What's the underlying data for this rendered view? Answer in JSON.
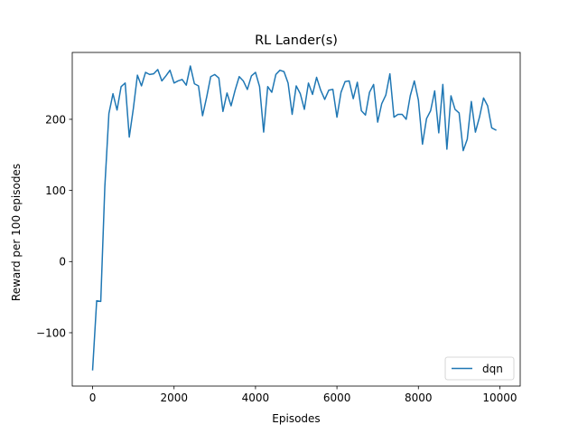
{
  "chart_data": {
    "type": "line",
    "title": "RL Lander(s)",
    "xlabel": "Episodes",
    "ylabel": "Reward per 100 episodes",
    "xlim": [
      -500,
      10500
    ],
    "ylim": [
      -175,
      294
    ],
    "xticks": [
      0,
      2000,
      4000,
      6000,
      8000,
      10000
    ],
    "xtick_labels": [
      "0",
      "2000",
      "4000",
      "6000",
      "8000",
      "10000"
    ],
    "yticks": [
      -100,
      0,
      100,
      200
    ],
    "ytick_labels": [
      "−100",
      "0",
      "100",
      "200"
    ],
    "grid": false,
    "legend_position": "lower-right",
    "series": [
      {
        "name": "dqn",
        "color": "#1f77b4",
        "x": [
          0,
          100,
          200,
          300,
          400,
          500,
          600,
          700,
          800,
          900,
          1000,
          1100,
          1200,
          1300,
          1400,
          1500,
          1600,
          1700,
          1800,
          1900,
          2000,
          2100,
          2200,
          2300,
          2400,
          2500,
          2600,
          2700,
          2800,
          2900,
          3000,
          3100,
          3200,
          3300,
          3400,
          3500,
          3600,
          3700,
          3800,
          3900,
          4000,
          4100,
          4200,
          4300,
          4400,
          4500,
          4600,
          4700,
          4800,
          4900,
          5000,
          5100,
          5200,
          5300,
          5400,
          5500,
          5600,
          5700,
          5800,
          5900,
          6000,
          6100,
          6200,
          6300,
          6400,
          6500,
          6600,
          6700,
          6800,
          6900,
          7000,
          7100,
          7200,
          7300,
          7400,
          7500,
          7600,
          7700,
          7800,
          7900,
          8000,
          8100,
          8200,
          8300,
          8400,
          8500,
          8600,
          8700,
          8800,
          8900,
          9000,
          9100,
          9200,
          9300,
          9400,
          9500,
          9600,
          9700,
          9800,
          9900
        ],
        "y": [
          -152,
          -55,
          -56,
          105,
          208,
          236,
          213,
          246,
          251,
          175,
          215,
          262,
          247,
          266,
          263,
          264,
          270,
          254,
          261,
          269,
          251,
          254,
          256,
          248,
          275,
          250,
          247,
          205,
          231,
          260,
          263,
          258,
          211,
          237,
          219,
          241,
          260,
          254,
          242,
          261,
          266,
          246,
          182,
          246,
          238,
          263,
          269,
          267,
          251,
          207,
          247,
          236,
          214,
          251,
          235,
          259,
          241,
          228,
          241,
          242,
          203,
          238,
          253,
          254,
          229,
          252,
          212,
          206,
          238,
          249,
          196,
          222,
          234,
          264,
          203,
          207,
          207,
          200,
          233,
          254,
          227,
          165,
          201,
          212,
          240,
          181,
          249,
          158,
          233,
          214,
          209,
          156,
          172,
          225,
          182,
          203,
          230,
          219,
          188,
          185
        ]
      }
    ]
  }
}
